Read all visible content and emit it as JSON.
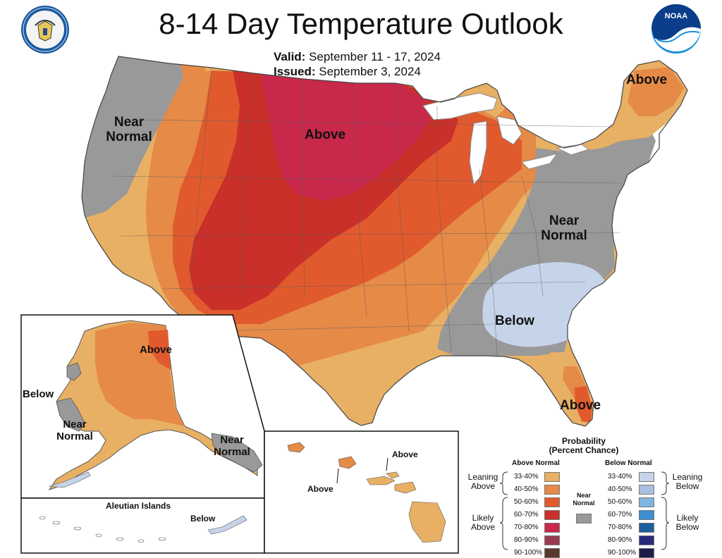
{
  "title": "8-14 Day Temperature Outlook",
  "valid_label": "Valid:",
  "valid_dates": "September 11 - 17, 2024",
  "issued_label": "Issued:",
  "issued_date": "September 3, 2024",
  "logos": {
    "left": "department-of-commerce-seal",
    "right": "noaa-logo",
    "right_text": "NOAA"
  },
  "map_labels": {
    "conus_above_north": "Above",
    "conus_near_normal_west": [
      "Near",
      "Normal"
    ],
    "conus_above_northeast": "Above",
    "conus_near_normal_east": [
      "Near",
      "Normal"
    ],
    "conus_below": "Below",
    "conus_above_florida": "Above",
    "alaska_above": "Above",
    "alaska_below": "Below",
    "alaska_near_normal_sw": [
      "Near",
      "Normal"
    ],
    "alaska_near_normal_se": [
      "Near",
      "Normal"
    ],
    "aleutian_title": "Aleutian Islands",
    "aleutian_below": "Below",
    "hawaii_above_1": "Above",
    "hawaii_above_2": "Above"
  },
  "legend": {
    "title_line1": "Probability",
    "title_line2": "(Percent Chance)",
    "above_header": "Above Normal",
    "below_header": "Below Normal",
    "near_normal_label": [
      "Near",
      "Normal"
    ],
    "leaning_above": [
      "Leaning",
      "Above"
    ],
    "likely_above": [
      "Likely",
      "Above"
    ],
    "leaning_below": [
      "Leaning",
      "Below"
    ],
    "likely_below": [
      "Likely",
      "Below"
    ],
    "above_bins": [
      {
        "label": "33-40%",
        "color": "#e8b064"
      },
      {
        "label": "40-50%",
        "color": "#e68a48"
      },
      {
        "label": "50-60%",
        "color": "#e05a2e"
      },
      {
        "label": "60-70%",
        "color": "#c9302a"
      },
      {
        "label": "70-80%",
        "color": "#c8284a"
      },
      {
        "label": "80-90%",
        "color": "#9b3a52"
      },
      {
        "label": "90-100%",
        "color": "#5a3a2a"
      }
    ],
    "below_bins": [
      {
        "label": "33-40%",
        "color": "#c6d4ea"
      },
      {
        "label": "40-50%",
        "color": "#a9c0e0"
      },
      {
        "label": "50-60%",
        "color": "#7fb6e0"
      },
      {
        "label": "60-70%",
        "color": "#3c8fd0"
      },
      {
        "label": "70-80%",
        "color": "#1e5fa0"
      },
      {
        "label": "80-90%",
        "color": "#2a2a7a"
      },
      {
        "label": "90-100%",
        "color": "#1c1c48"
      }
    ],
    "near_normal_color": "#999999"
  }
}
